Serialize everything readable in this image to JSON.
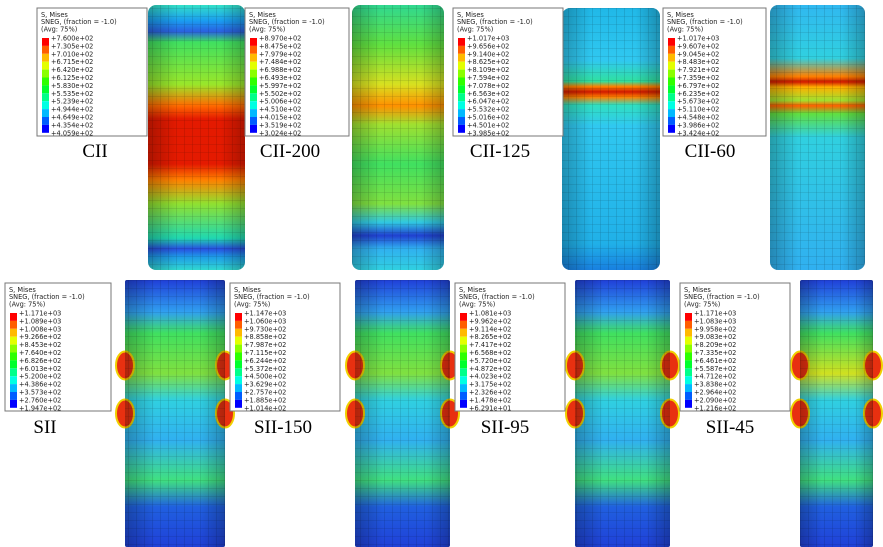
{
  "panels": [
    {
      "label": "CII",
      "legend_header": [
        "S, Mises",
        "SNEG, (fraction = -1.0)",
        "(Avg: 75%)"
      ],
      "legend_values": [
        "+7.600e+02",
        "+7.305e+02",
        "+7.010e+02",
        "+6.715e+02",
        "+6.420e+02",
        "+6.125e+02",
        "+5.830e+02",
        "+5.535e+02",
        "+5.239e+02",
        "+4.944e+02",
        "+4.649e+02",
        "+4.354e+02",
        "+4.059e+02"
      ]
    },
    {
      "label": "CII-200",
      "legend_header": [
        "S, Mises",
        "SNEG, (fraction = -1.0)",
        "(Avg: 75%)"
      ],
      "legend_values": [
        "+8.970e+02",
        "+8.475e+02",
        "+7.979e+02",
        "+7.484e+02",
        "+6.988e+02",
        "+6.493e+02",
        "+5.997e+02",
        "+5.502e+02",
        "+5.006e+02",
        "+4.510e+02",
        "+4.015e+02",
        "+3.519e+02",
        "+3.024e+02"
      ]
    },
    {
      "label": "CII-125",
      "legend_header": [
        "S, Mises",
        "SNEG, (fraction = -1.0)",
        "(Avg: 75%)"
      ],
      "legend_values": [
        "+1.017e+03",
        "+9.656e+02",
        "+9.140e+02",
        "+8.625e+02",
        "+8.109e+02",
        "+7.594e+02",
        "+7.078e+02",
        "+6.563e+02",
        "+6.047e+02",
        "+5.532e+02",
        "+5.016e+02",
        "+4.501e+02",
        "+3.985e+02"
      ]
    },
    {
      "label": "CII-60",
      "legend_header": [
        "S, Mises",
        "SNEG, (fraction = -1.0)",
        "(Avg: 75%)"
      ],
      "legend_values": [
        "+1.017e+03",
        "+9.607e+02",
        "+9.045e+02",
        "+8.483e+02",
        "+7.921e+02",
        "+7.359e+02",
        "+6.797e+02",
        "+6.235e+02",
        "+5.673e+02",
        "+5.110e+02",
        "+4.548e+02",
        "+3.986e+02",
        "+3.424e+02"
      ]
    },
    {
      "label": "SII",
      "legend_header": [
        "S, Mises",
        "SNEG, (fraction = -1.0)",
        "(Avg: 75%)"
      ],
      "legend_values": [
        "+1.171e+03",
        "+1.089e+03",
        "+1.008e+03",
        "+9.266e+02",
        "+8.453e+02",
        "+7.640e+02",
        "+6.826e+02",
        "+6.013e+02",
        "+5.200e+02",
        "+4.386e+02",
        "+3.573e+02",
        "+2.760e+02",
        "+1.947e+02"
      ]
    },
    {
      "label": "SII-150",
      "legend_header": [
        "S, Mises",
        "SNEG, (fraction = -1.0)",
        "(Avg: 75%)"
      ],
      "legend_values": [
        "+1.147e+03",
        "+1.060e+03",
        "+9.730e+02",
        "+8.858e+02",
        "+7.987e+02",
        "+7.115e+02",
        "+6.244e+02",
        "+5.372e+02",
        "+4.500e+02",
        "+3.629e+02",
        "+2.757e+02",
        "+1.885e+02",
        "+1.014e+02"
      ]
    },
    {
      "label": "SII-95",
      "legend_header": [
        "S, Mises",
        "SNEG, (fraction = -1.0)",
        "(Avg: 75%)"
      ],
      "legend_values": [
        "+1.081e+03",
        "+9.962e+02",
        "+9.114e+02",
        "+8.265e+02",
        "+7.417e+02",
        "+6.568e+02",
        "+5.720e+02",
        "+4.872e+02",
        "+4.023e+02",
        "+3.175e+02",
        "+2.326e+02",
        "+1.478e+02",
        "+6.291e+01"
      ]
    },
    {
      "label": "SII-45",
      "legend_header": [
        "S, Mises",
        "SNEG, (fraction = -1.0)",
        "(Avg: 75%)"
      ],
      "legend_values": [
        "+1.171e+03",
        "+1.083e+03",
        "+9.958e+02",
        "+9.083e+02",
        "+8.209e+02",
        "+7.335e+02",
        "+6.461e+02",
        "+5.587e+02",
        "+4.712e+02",
        "+3.838e+02",
        "+2.964e+02",
        "+2.090e+02",
        "+1.216e+02"
      ]
    }
  ]
}
